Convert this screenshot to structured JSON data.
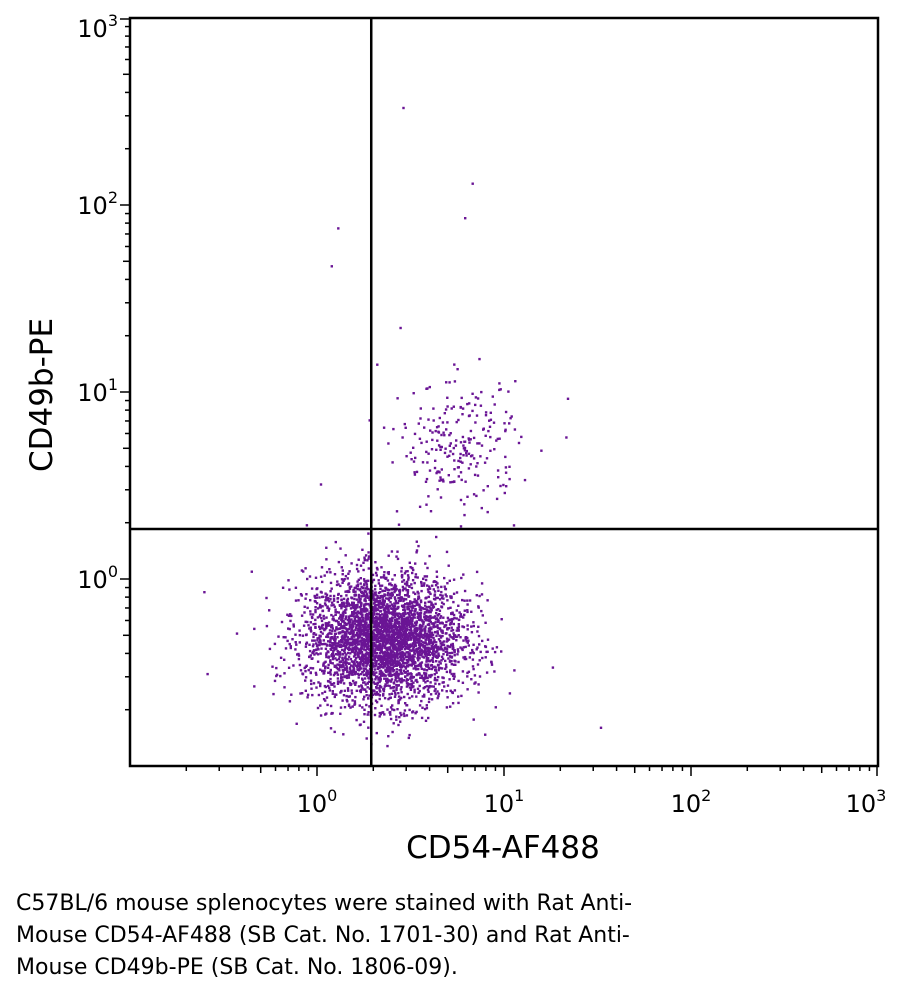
{
  "chart_data": {
    "type": "scatter",
    "title": "",
    "xlabel": "CD54-AF488",
    "ylabel": "CD49b-PE",
    "x_scale": "log",
    "y_scale": "log",
    "xlim": [
      0.1,
      1000
    ],
    "ylim": [
      0.1,
      1000
    ],
    "x_ticks": [
      {
        "base": "10",
        "exp": "0",
        "value": 1
      },
      {
        "base": "10",
        "exp": "1",
        "value": 10
      },
      {
        "base": "10",
        "exp": "2",
        "value": 100
      },
      {
        "base": "10",
        "exp": "3",
        "value": 1000
      }
    ],
    "y_ticks": [
      {
        "base": "10",
        "exp": "0",
        "value": 1
      },
      {
        "base": "10",
        "exp": "1",
        "value": 10
      },
      {
        "base": "10",
        "exp": "2",
        "value": 100
      },
      {
        "base": "10",
        "exp": "3",
        "value": 1000
      }
    ],
    "quadrant_gate": {
      "x": 1.95,
      "y": 1.85
    },
    "point_color": "#6a1595",
    "frame_color": "#000000",
    "grid": false,
    "populations": [
      {
        "center": [
          2.3,
          0.48
        ],
        "spread_log10": [
          0.21,
          0.17
        ],
        "count": 3800
      },
      {
        "center": [
          5.8,
          5.0
        ],
        "spread_log10": [
          0.16,
          0.17
        ],
        "count": 240
      }
    ],
    "outliers": [
      {
        "x": 2.9,
        "y": 330
      },
      {
        "x": 6.8,
        "y": 130
      },
      {
        "x": 6.2,
        "y": 85
      },
      {
        "x": 1.3,
        "y": 75
      },
      {
        "x": 1.2,
        "y": 47
      },
      {
        "x": 2.8,
        "y": 22
      },
      {
        "x": 1.05,
        "y": 3.2
      },
      {
        "x": 7.4,
        "y": 15
      },
      {
        "x": 2.1,
        "y": 14
      },
      {
        "x": 0.26,
        "y": 0.31
      },
      {
        "x": 0.25,
        "y": 0.85
      },
      {
        "x": 33,
        "y": 0.16
      },
      {
        "x": 22,
        "y": 9.2
      }
    ]
  },
  "caption": {
    "line1": "C57BL/6 mouse splenocytes were stained with Rat Anti-",
    "line2": "Mouse CD54-AF488 (SB Cat. No. 1701-30) and Rat Anti-",
    "line3": "Mouse CD49b-PE (SB Cat. No. 1806-09)."
  }
}
